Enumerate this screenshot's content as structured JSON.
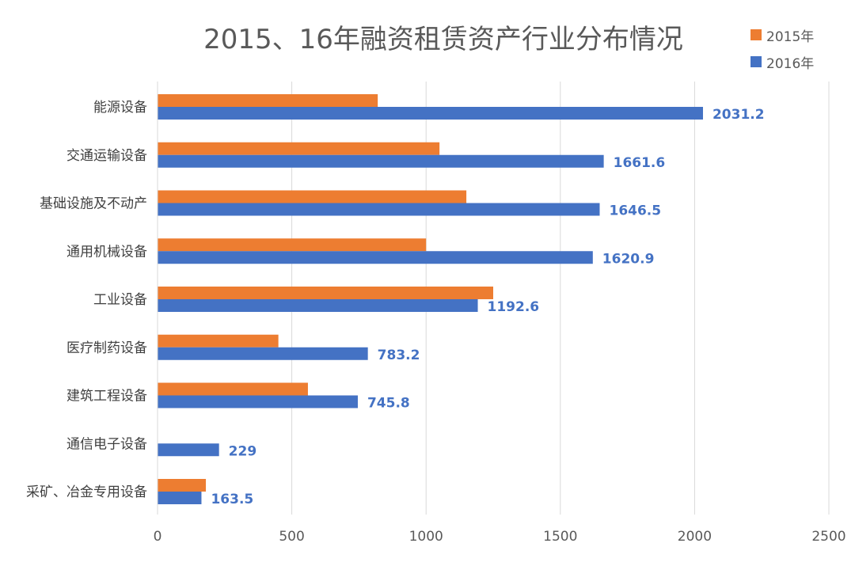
{
  "chart_data": {
    "type": "bar",
    "orientation": "horizontal",
    "title": "2015、16年融资租赁资产行业分布情况",
    "categories": [
      "能源设备",
      "交通运输设备",
      "基础设施及不动产",
      "通用机械设备",
      "工业设备",
      "医疗制药设备",
      "建筑工程设备",
      "通信电子设备",
      "采矿、冶金专用设备"
    ],
    "series": [
      {
        "name": "2015年",
        "color": "#ed7d31",
        "values": [
          820,
          1050,
          1150,
          1000,
          1250,
          450,
          560,
          0,
          180
        ],
        "show_labels": false
      },
      {
        "name": "2016年",
        "color": "#4472c4",
        "values": [
          2031.2,
          1661.6,
          1646.5,
          1620.9,
          1192.6,
          783.2,
          745.8,
          229,
          163.5
        ],
        "show_labels": true,
        "labels": [
          "2031.2",
          "1661.6",
          "1646.5",
          "1620.9",
          "1192.6",
          "783.2",
          "745.8",
          "229",
          "163.5"
        ]
      }
    ],
    "xlim": [
      0,
      2500
    ],
    "xticks": [
      "0",
      "500",
      "1000",
      "1500",
      "2000",
      "2500"
    ],
    "grid": true,
    "legend_position": "top-right"
  }
}
